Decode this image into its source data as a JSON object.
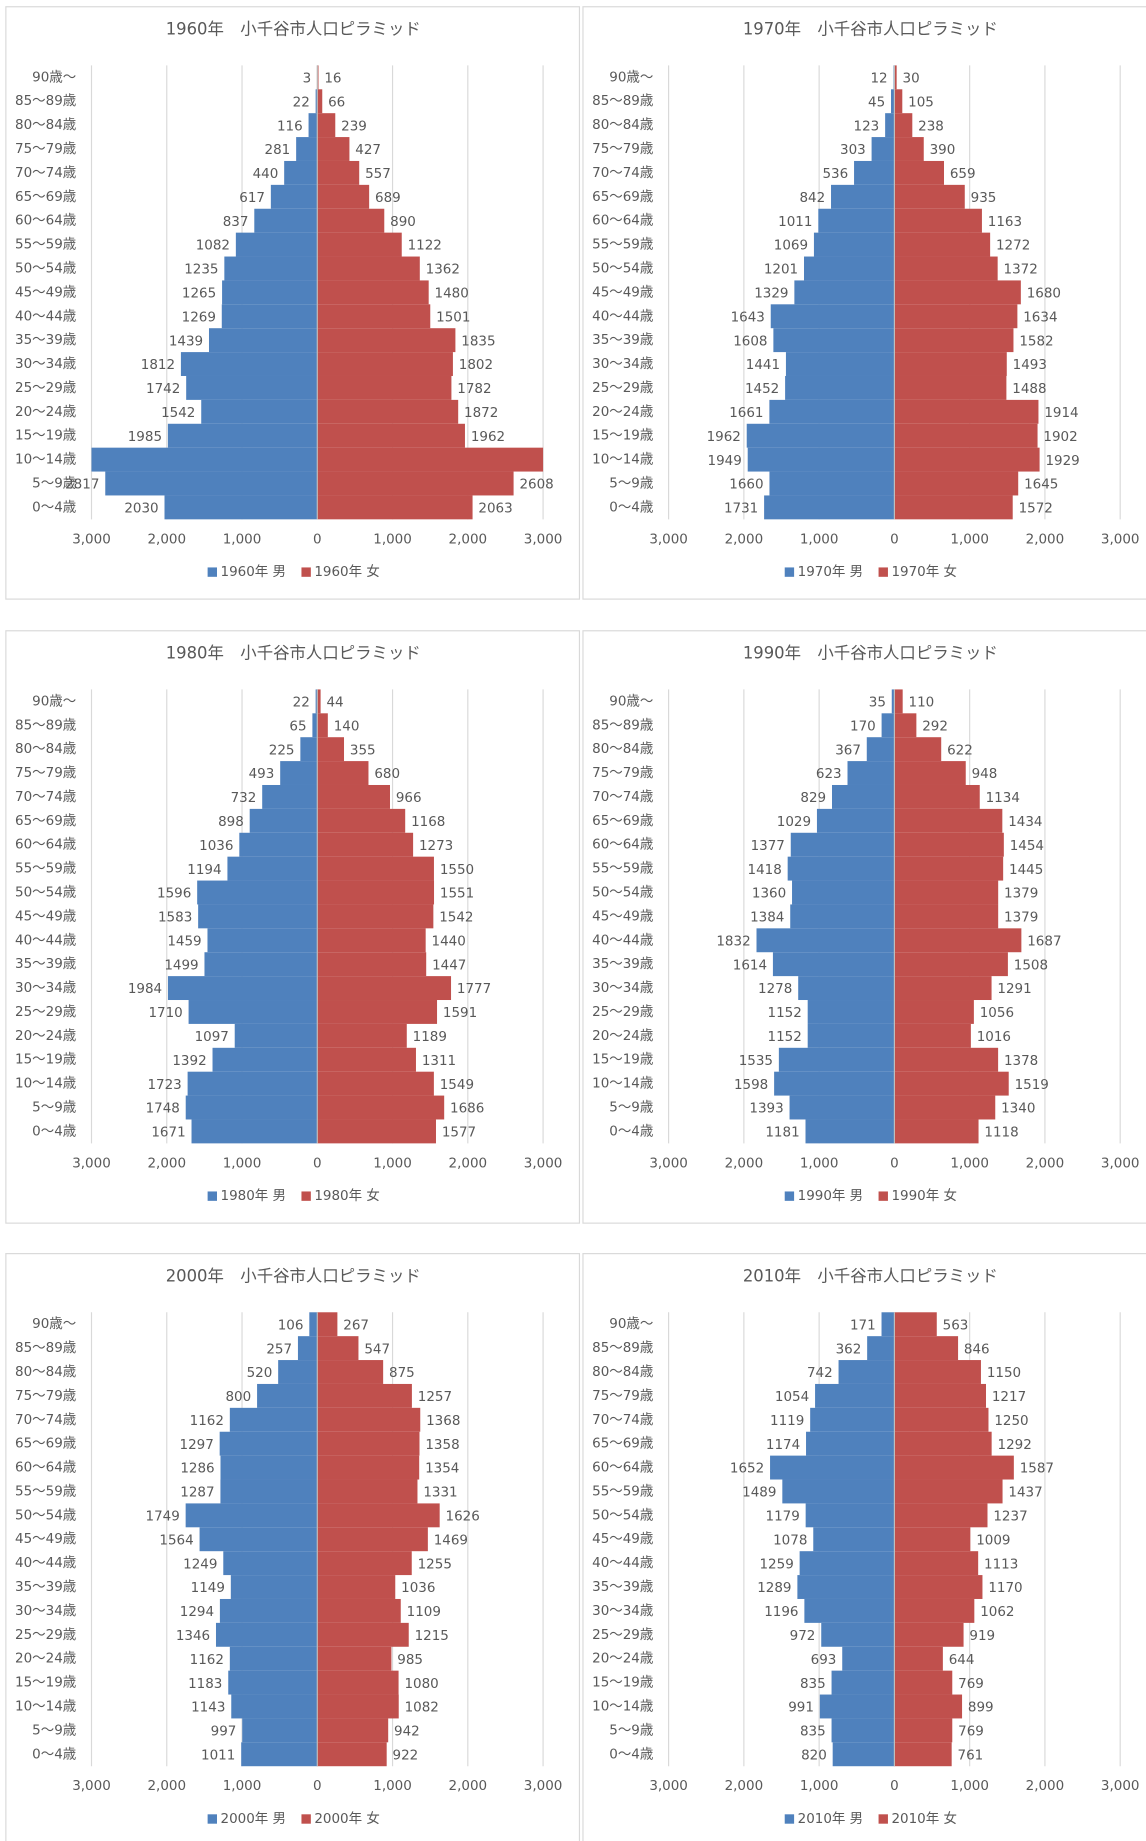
{
  "chart_data": [
    {
      "type": "pyramid",
      "title": "1960年　小千谷市人口ピラミッド",
      "categories": [
        "0～4歳",
        "5～9歳",
        "10～14歳",
        "15～19歳",
        "20～24歳",
        "25～29歳",
        "30～34歳",
        "35～39歳",
        "40～44歳",
        "45～49歳",
        "50～54歳",
        "55～59歳",
        "60～64歳",
        "65～69歳",
        "70～74歳",
        "75～79歳",
        "80～84歳",
        "85～89歳",
        "90歳～"
      ],
      "series": [
        {
          "name": "1960年 男",
          "color": "#4f81bd",
          "values": [
            2030,
            2817,
            3000,
            1985,
            1542,
            1742,
            1812,
            1439,
            1269,
            1265,
            1235,
            1082,
            837,
            617,
            440,
            281,
            116,
            22,
            3
          ],
          "value_labels": [
            "2030",
            "2817",
            null,
            "1985",
            "1542",
            "1742",
            "1812",
            "1439",
            "1269",
            "1265",
            "1235",
            "1082",
            "837",
            "617",
            "440",
            "281",
            "116",
            "22",
            "3"
          ]
        },
        {
          "name": "1960年 女",
          "color": "#c0504d",
          "values": [
            2063,
            2608,
            3000,
            1962,
            1872,
            1782,
            1802,
            1835,
            1501,
            1480,
            1362,
            1122,
            890,
            689,
            557,
            427,
            239,
            66,
            16
          ],
          "value_labels": [
            "2063",
            "2608",
            null,
            "1962",
            "1872",
            "1782",
            "1802",
            "1835",
            "1501",
            "1480",
            "1362",
            "1122",
            "890",
            "689",
            "557",
            "427",
            "239",
            "66",
            "16"
          ]
        }
      ],
      "xlim": [
        -3000,
        3000
      ],
      "xticks": [
        {
          "value": -3000,
          "label": "3,000"
        },
        {
          "value": -2000,
          "label": "2,000"
        },
        {
          "value": -1000,
          "label": "1,000"
        },
        0,
        {
          "value": 1000,
          "label": "1,000"
        },
        {
          "value": 2000,
          "label": "2,000"
        },
        {
          "value": 3000,
          "label": "3,000"
        }
      ],
      "grid": true
    },
    {
      "type": "pyramid",
      "title": "1970年　小千谷市人口ピラミッド",
      "categories": [
        "0～4歳",
        "5～9歳",
        "10～14歳",
        "15～19歳",
        "20～24歳",
        "25～29歳",
        "30～34歳",
        "35～39歳",
        "40～44歳",
        "45～49歳",
        "50～54歳",
        "55～59歳",
        "60～64歳",
        "65～69歳",
        "70～74歳",
        "75～79歳",
        "80～84歳",
        "85～89歳",
        "90歳～"
      ],
      "series": [
        {
          "name": "1970年 男",
          "color": "#4f81bd",
          "values": [
            1731,
            1660,
            1949,
            1962,
            1661,
            1452,
            1441,
            1608,
            1643,
            1329,
            1201,
            1069,
            1011,
            842,
            536,
            303,
            123,
            45,
            12
          ]
        },
        {
          "name": "1970年 女",
          "color": "#c0504d",
          "values": [
            1572,
            1645,
            1929,
            1902,
            1914,
            1488,
            1493,
            1582,
            1634,
            1680,
            1372,
            1272,
            1163,
            935,
            659,
            390,
            238,
            105,
            30
          ]
        }
      ],
      "xlim": [
        -3000,
        3000
      ],
      "xticks": [
        {
          "value": -3000,
          "label": "3,000"
        },
        {
          "value": -2000,
          "label": "2,000"
        },
        {
          "value": -1000,
          "label": "1,000"
        },
        0,
        {
          "value": 1000,
          "label": "1,000"
        },
        {
          "value": 2000,
          "label": "2,000"
        },
        {
          "value": 3000,
          "label": "3,000"
        }
      ],
      "grid": true
    },
    {
      "type": "pyramid",
      "title": "1980年　小千谷市人口ピラミッド",
      "categories": [
        "0～4歳",
        "5～9歳",
        "10～14歳",
        "15～19歳",
        "20～24歳",
        "25～29歳",
        "30～34歳",
        "35～39歳",
        "40～44歳",
        "45～49歳",
        "50～54歳",
        "55～59歳",
        "60～64歳",
        "65～69歳",
        "70～74歳",
        "75～79歳",
        "80～84歳",
        "85～89歳",
        "90歳～"
      ],
      "series": [
        {
          "name": "1980年 男",
          "color": "#4f81bd",
          "values": [
            1671,
            1748,
            1723,
            1392,
            1097,
            1710,
            1984,
            1499,
            1459,
            1583,
            1596,
            1194,
            1036,
            898,
            732,
            493,
            225,
            65,
            22
          ]
        },
        {
          "name": "1980年 女",
          "color": "#c0504d",
          "values": [
            1577,
            1686,
            1549,
            1311,
            1189,
            1591,
            1777,
            1447,
            1440,
            1542,
            1551,
            1550,
            1273,
            1168,
            966,
            680,
            355,
            140,
            44
          ]
        }
      ],
      "xlim": [
        -3000,
        3000
      ],
      "xticks": [
        {
          "value": -3000,
          "label": "3,000"
        },
        {
          "value": -2000,
          "label": "2,000"
        },
        {
          "value": -1000,
          "label": "1,000"
        },
        0,
        {
          "value": 1000,
          "label": "1,000"
        },
        {
          "value": 2000,
          "label": "2,000"
        },
        {
          "value": 3000,
          "label": "3,000"
        }
      ],
      "grid": true
    },
    {
      "type": "pyramid",
      "title": "1990年　小千谷市人口ピラミッド",
      "categories": [
        "0～4歳",
        "5～9歳",
        "10～14歳",
        "15～19歳",
        "20～24歳",
        "25～29歳",
        "30～34歳",
        "35～39歳",
        "40～44歳",
        "45～49歳",
        "50～54歳",
        "55～59歳",
        "60～64歳",
        "65～69歳",
        "70～74歳",
        "75～79歳",
        "80～84歳",
        "85～89歳",
        "90歳～"
      ],
      "series": [
        {
          "name": "1990年 男",
          "color": "#4f81bd",
          "values": [
            1181,
            1393,
            1598,
            1535,
            1152,
            1152,
            1278,
            1614,
            1832,
            1384,
            1360,
            1418,
            1377,
            1029,
            829,
            623,
            367,
            170,
            35
          ]
        },
        {
          "name": "1990年 女",
          "color": "#c0504d",
          "values": [
            1118,
            1340,
            1519,
            1378,
            1016,
            1056,
            1291,
            1508,
            1687,
            1379,
            1379,
            1445,
            1454,
            1434,
            1134,
            948,
            622,
            292,
            110
          ]
        }
      ],
      "xlim": [
        -3000,
        3000
      ],
      "xticks": [
        {
          "value": -3000,
          "label": "3,000"
        },
        {
          "value": -2000,
          "label": "2,000"
        },
        {
          "value": -1000,
          "label": "1,000"
        },
        0,
        {
          "value": 1000,
          "label": "1,000"
        },
        {
          "value": 2000,
          "label": "2,000"
        },
        {
          "value": 3000,
          "label": "3,000"
        }
      ],
      "grid": true
    },
    {
      "type": "pyramid",
      "title": "2000年　小千谷市人口ピラミッド",
      "categories": [
        "0～4歳",
        "5～9歳",
        "10～14歳",
        "15～19歳",
        "20～24歳",
        "25～29歳",
        "30～34歳",
        "35～39歳",
        "40～44歳",
        "45～49歳",
        "50～54歳",
        "55～59歳",
        "60～64歳",
        "65～69歳",
        "70～74歳",
        "75～79歳",
        "80～84歳",
        "85～89歳",
        "90歳～"
      ],
      "series": [
        {
          "name": "2000年 男",
          "color": "#4f81bd",
          "values": [
            1011,
            997,
            1143,
            1183,
            1162,
            1346,
            1294,
            1149,
            1249,
            1564,
            1749,
            1287,
            1286,
            1297,
            1162,
            800,
            520,
            257,
            106
          ]
        },
        {
          "name": "2000年 女",
          "color": "#c0504d",
          "values": [
            922,
            942,
            1082,
            1080,
            985,
            1215,
            1109,
            1036,
            1255,
            1469,
            1626,
            1331,
            1354,
            1358,
            1368,
            1257,
            875,
            547,
            267
          ]
        }
      ],
      "xlim": [
        -3000,
        3000
      ],
      "xticks": [
        {
          "value": -3000,
          "label": "3,000"
        },
        {
          "value": -2000,
          "label": "2,000"
        },
        {
          "value": -1000,
          "label": "1,000"
        },
        0,
        {
          "value": 1000,
          "label": "1,000"
        },
        {
          "value": 2000,
          "label": "2,000"
        },
        {
          "value": 3000,
          "label": "3,000"
        }
      ],
      "grid": true
    },
    {
      "type": "pyramid",
      "title": "2010年　小千谷市人口ピラミッド",
      "categories": [
        "0～4歳",
        "5～9歳",
        "10～14歳",
        "15～19歳",
        "20～24歳",
        "25～29歳",
        "30～34歳",
        "35～39歳",
        "40～44歳",
        "45～49歳",
        "50～54歳",
        "55～59歳",
        "60～64歳",
        "65～69歳",
        "70～74歳",
        "75～79歳",
        "80～84歳",
        "85～89歳",
        "90歳～"
      ],
      "series": [
        {
          "name": "2010年 男",
          "color": "#4f81bd",
          "values": [
            820,
            835,
            991,
            835,
            693,
            972,
            1196,
            1289,
            1259,
            1078,
            1179,
            1489,
            1652,
            1174,
            1119,
            1054,
            742,
            362,
            171
          ]
        },
        {
          "name": "2010年 女",
          "color": "#c0504d",
          "values": [
            761,
            769,
            899,
            769,
            644,
            919,
            1062,
            1170,
            1113,
            1009,
            1237,
            1437,
            1587,
            1292,
            1250,
            1217,
            1150,
            846,
            563
          ]
        }
      ],
      "xlim": [
        -3000,
        3000
      ],
      "xticks": [
        {
          "value": -3000,
          "label": "3,000"
        },
        {
          "value": -2000,
          "label": "2,000"
        },
        {
          "value": -1000,
          "label": "1,000"
        },
        0,
        {
          "value": 1000,
          "label": "1,000"
        },
        {
          "value": 2000,
          "label": "2,000"
        },
        {
          "value": 3000,
          "label": "3,000"
        }
      ],
      "grid": true
    }
  ]
}
